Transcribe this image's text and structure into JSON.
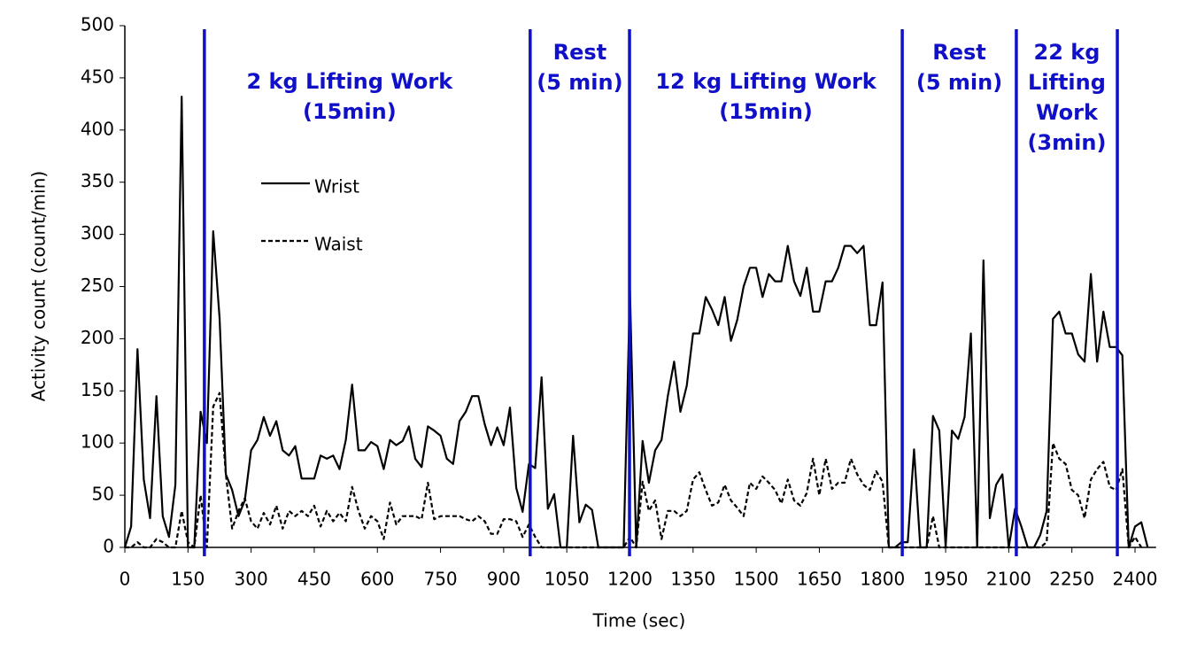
{
  "chart_data": {
    "type": "line",
    "xlabel": "Time (sec)",
    "ylabel": "Activity count (count/min)",
    "x": [
      0,
      15,
      30,
      45,
      60,
      75,
      90,
      105,
      120,
      135,
      150,
      165,
      180,
      195,
      210,
      225,
      240,
      255,
      270,
      285,
      300,
      315,
      330,
      345,
      360,
      375,
      390,
      405,
      420,
      435,
      450,
      465,
      480,
      495,
      510,
      525,
      540,
      555,
      570,
      585,
      600,
      615,
      630,
      645,
      660,
      675,
      690,
      705,
      720,
      735,
      750,
      765,
      780,
      795,
      810,
      825,
      840,
      855,
      870,
      885,
      900,
      915,
      930,
      945,
      960,
      975,
      990,
      1005,
      1020,
      1035,
      1050,
      1065,
      1080,
      1095,
      1110,
      1125,
      1140,
      1155,
      1170,
      1185,
      1200,
      1215,
      1230,
      1245,
      1260,
      1275,
      1290,
      1305,
      1320,
      1335,
      1350,
      1365,
      1380,
      1395,
      1410,
      1425,
      1440,
      1455,
      1470,
      1485,
      1500,
      1515,
      1530,
      1545,
      1560,
      1575,
      1590,
      1605,
      1620,
      1635,
      1650,
      1665,
      1680,
      1695,
      1710,
      1725,
      1740,
      1755,
      1770,
      1785,
      1800,
      1815,
      1830,
      1845,
      1860,
      1875,
      1890,
      1905,
      1920,
      1935,
      1950,
      1965,
      1980,
      1995,
      2010,
      2025,
      2040,
      2055,
      2070,
      2085,
      2100,
      2115,
      2130,
      2145,
      2160,
      2175,
      2190,
      2205,
      2220,
      2235,
      2250,
      2265,
      2280,
      2295,
      2310,
      2325,
      2340,
      2355,
      2370,
      2385,
      2400,
      2415,
      2430
    ],
    "series": [
      {
        "name": "Wrist",
        "color": "#000000",
        "dashed": false,
        "values": [
          0,
          20,
          190,
          65,
          28,
          145,
          30,
          10,
          60,
          432,
          0,
          0,
          130,
          100,
          303,
          220,
          70,
          55,
          30,
          45,
          93,
          103,
          125,
          107,
          121,
          93,
          88,
          97,
          66,
          66,
          66,
          88,
          85,
          88,
          75,
          103,
          156,
          93,
          93,
          101,
          97,
          75,
          103,
          98,
          102,
          116,
          85,
          77,
          116,
          112,
          107,
          85,
          80,
          121,
          130,
          145,
          145,
          118,
          98,
          115,
          98,
          134,
          57,
          34,
          80,
          76,
          163,
          37,
          51,
          0,
          0,
          107,
          24,
          41,
          36,
          0,
          0,
          0,
          0,
          0,
          247,
          0,
          102,
          62,
          93,
          103,
          145,
          178,
          130,
          155,
          205,
          205,
          240,
          228,
          213,
          240,
          198,
          218,
          250,
          268,
          268,
          240,
          262,
          255,
          255,
          289,
          255,
          241,
          268,
          226,
          226,
          255,
          255,
          268,
          289,
          289,
          282,
          289,
          213,
          213,
          254,
          0,
          0,
          5,
          5,
          94,
          0,
          0,
          126,
          112,
          0,
          112,
          104,
          125,
          205,
          0,
          275,
          28,
          60,
          70,
          0,
          37,
          20,
          0,
          0,
          12,
          35,
          219,
          226,
          205,
          205,
          185,
          178,
          262,
          178,
          226,
          192,
          192,
          184,
          0,
          20,
          24,
          0
        ]
      },
      {
        "name": "Waist",
        "color": "#000000",
        "dashed": true,
        "values": [
          0,
          0,
          5,
          0,
          0,
          8,
          5,
          0,
          0,
          35,
          5,
          0,
          50,
          0,
          135,
          148,
          70,
          18,
          35,
          47,
          25,
          18,
          33,
          22,
          40,
          18,
          35,
          30,
          35,
          30,
          40,
          20,
          35,
          25,
          33,
          25,
          58,
          35,
          18,
          30,
          25,
          8,
          43,
          22,
          30,
          30,
          30,
          27,
          62,
          27,
          30,
          30,
          30,
          30,
          27,
          25,
          30,
          25,
          13,
          13,
          27,
          27,
          25,
          10,
          22,
          10,
          0,
          0,
          0,
          0,
          0,
          0,
          0,
          0,
          0,
          0,
          0,
          0,
          0,
          0,
          10,
          0,
          63,
          35,
          45,
          8,
          35,
          35,
          30,
          35,
          65,
          72,
          55,
          40,
          43,
          60,
          45,
          38,
          30,
          62,
          56,
          68,
          62,
          55,
          42,
          65,
          45,
          40,
          52,
          85,
          50,
          85,
          56,
          62,
          62,
          85,
          70,
          60,
          55,
          73,
          63,
          0,
          0,
          0,
          0,
          0,
          0,
          0,
          30,
          0,
          0,
          0,
          0,
          0,
          0,
          0,
          0,
          0,
          0,
          0,
          0,
          0,
          0,
          0,
          0,
          0,
          5,
          100,
          85,
          80,
          55,
          50,
          28,
          65,
          75,
          82,
          58,
          55,
          75,
          0,
          10,
          0,
          null
        ]
      }
    ],
    "xlim": [
      0,
      2450
    ],
    "ylim": [
      0,
      500
    ],
    "xticks": [
      0,
      150,
      300,
      450,
      600,
      750,
      900,
      1050,
      1200,
      1350,
      1500,
      1650,
      1800,
      1950,
      2100,
      2250,
      2400
    ],
    "yticks": [
      0,
      50,
      100,
      150,
      200,
      250,
      300,
      350,
      400,
      450,
      500
    ],
    "phase_lines": [
      189,
      963,
      1199,
      1847,
      2118,
      2358
    ],
    "phase_color": "#1010c8",
    "annotations": [
      [
        "2 kg Lifting Work",
        "(15min)"
      ],
      [
        "Rest",
        "(5 min)"
      ],
      [
        "12 kg Lifting Work",
        "(15min)"
      ],
      [
        "Rest",
        "(5 min)"
      ],
      [
        "22 kg",
        "Lifting",
        "Work",
        "(3min)"
      ]
    ]
  }
}
